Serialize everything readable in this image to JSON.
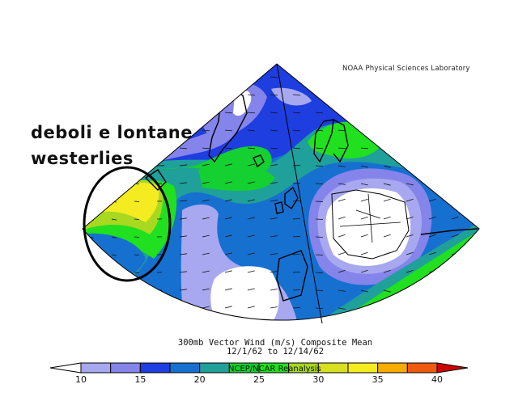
{
  "credit": "NOAA Physical Sciences Laboratory",
  "annotation": {
    "line1": "deboli e lontane",
    "line2": "westerlies"
  },
  "title": {
    "line1": "300mb Vector Wind (m/s) Composite Mean",
    "line2": "12/1/62  to 12/14/62"
  },
  "colorbar": {
    "overlay_label": "NCEP/NCAR Reanalysis",
    "ticks": [
      "10",
      "15",
      "20",
      "25",
      "30",
      "35",
      "40"
    ],
    "tick_values": [
      10,
      15,
      20,
      25,
      30,
      35,
      40
    ],
    "bins": [
      {
        "from": 10,
        "to": 12.5,
        "color": "#a8a8f0"
      },
      {
        "from": 12.5,
        "to": 15,
        "color": "#8484ea"
      },
      {
        "from": 15,
        "to": 17.5,
        "color": "#1e3ee0"
      },
      {
        "from": 17.5,
        "to": 20,
        "color": "#1670d0"
      },
      {
        "from": 20,
        "to": 22.5,
        "color": "#1fa09a"
      },
      {
        "from": 22.5,
        "to": 25,
        "color": "#14d030"
      },
      {
        "from": 25,
        "to": 27.5,
        "color": "#20e020"
      },
      {
        "from": 27.5,
        "to": 30,
        "color": "#a8d820"
      },
      {
        "from": 30,
        "to": 32.5,
        "color": "#d8e020"
      },
      {
        "from": 32.5,
        "to": 35,
        "color": "#f4ec20"
      },
      {
        "from": 35,
        "to": 37.5,
        "color": "#f8ac00"
      },
      {
        "from": 37.5,
        "to": 40,
        "color": "#f05a10"
      }
    ],
    "under_color": "#ffffff",
    "over_color": "#d00000"
  }
}
